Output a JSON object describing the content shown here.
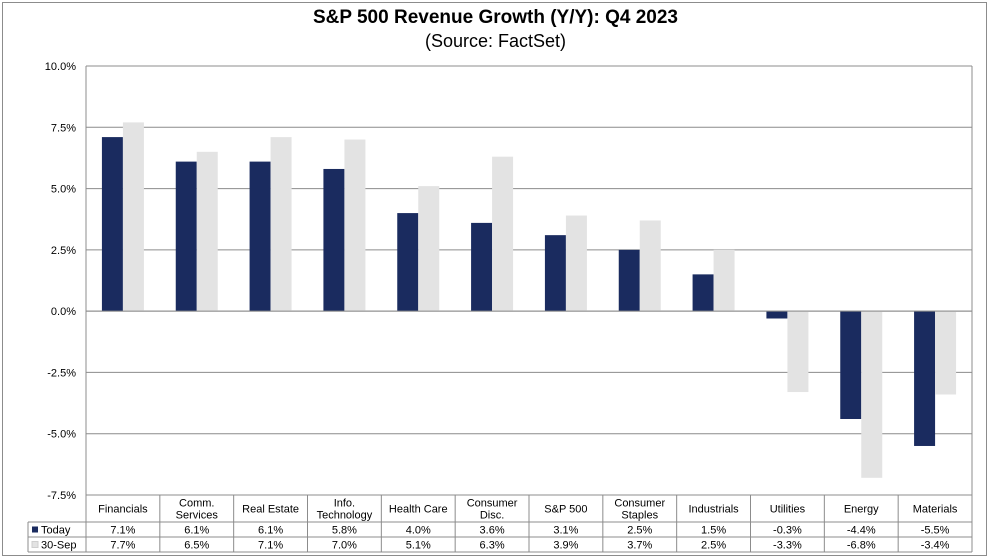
{
  "chart_data": {
    "type": "bar",
    "title": "S&P 500 Revenue Growth (Y/Y):  Q4 2023",
    "subtitle": "(Source: FactSet)",
    "categories": [
      [
        "Financials"
      ],
      [
        "Comm.",
        "Services"
      ],
      [
        "Real Estate"
      ],
      [
        "Info.",
        "Technology"
      ],
      [
        "Health Care"
      ],
      [
        "Consumer",
        "Disc."
      ],
      [
        "S&P 500"
      ],
      [
        "Consumer",
        "Staples"
      ],
      [
        "Industrials"
      ],
      [
        "Utilities"
      ],
      [
        "Energy"
      ],
      [
        "Materials"
      ]
    ],
    "series": [
      {
        "name": "Today",
        "color": "#1a2b5f",
        "values": [
          7.1,
          6.1,
          6.1,
          5.8,
          4.0,
          3.6,
          3.1,
          2.5,
          1.5,
          -0.3,
          -4.4,
          -5.5
        ],
        "labels": [
          "7.1%",
          "6.1%",
          "6.1%",
          "5.8%",
          "4.0%",
          "3.6%",
          "3.1%",
          "2.5%",
          "1.5%",
          "-0.3%",
          "-4.4%",
          "-5.5%"
        ]
      },
      {
        "name": "30-Sep",
        "color": "#e3e3e3",
        "values": [
          7.7,
          6.5,
          7.1,
          7.0,
          5.1,
          6.3,
          3.9,
          3.7,
          2.5,
          -3.3,
          -6.8,
          -3.4
        ],
        "labels": [
          "7.7%",
          "6.5%",
          "7.1%",
          "7.0%",
          "5.1%",
          "6.3%",
          "3.9%",
          "3.7%",
          "2.5%",
          "-3.3%",
          "-6.8%",
          "-3.4%"
        ]
      }
    ],
    "ylim": [
      -7.5,
      10.0
    ],
    "yticks": [
      10.0,
      7.5,
      5.0,
      2.5,
      0.0,
      -2.5,
      -5.0,
      -7.5
    ],
    "ytick_labels": [
      "10.0%",
      "7.5%",
      "5.0%",
      "2.5%",
      "0.0%",
      "-2.5%",
      "-5.0%",
      "-7.5%"
    ],
    "grid": true,
    "legend": "data-table-below"
  }
}
